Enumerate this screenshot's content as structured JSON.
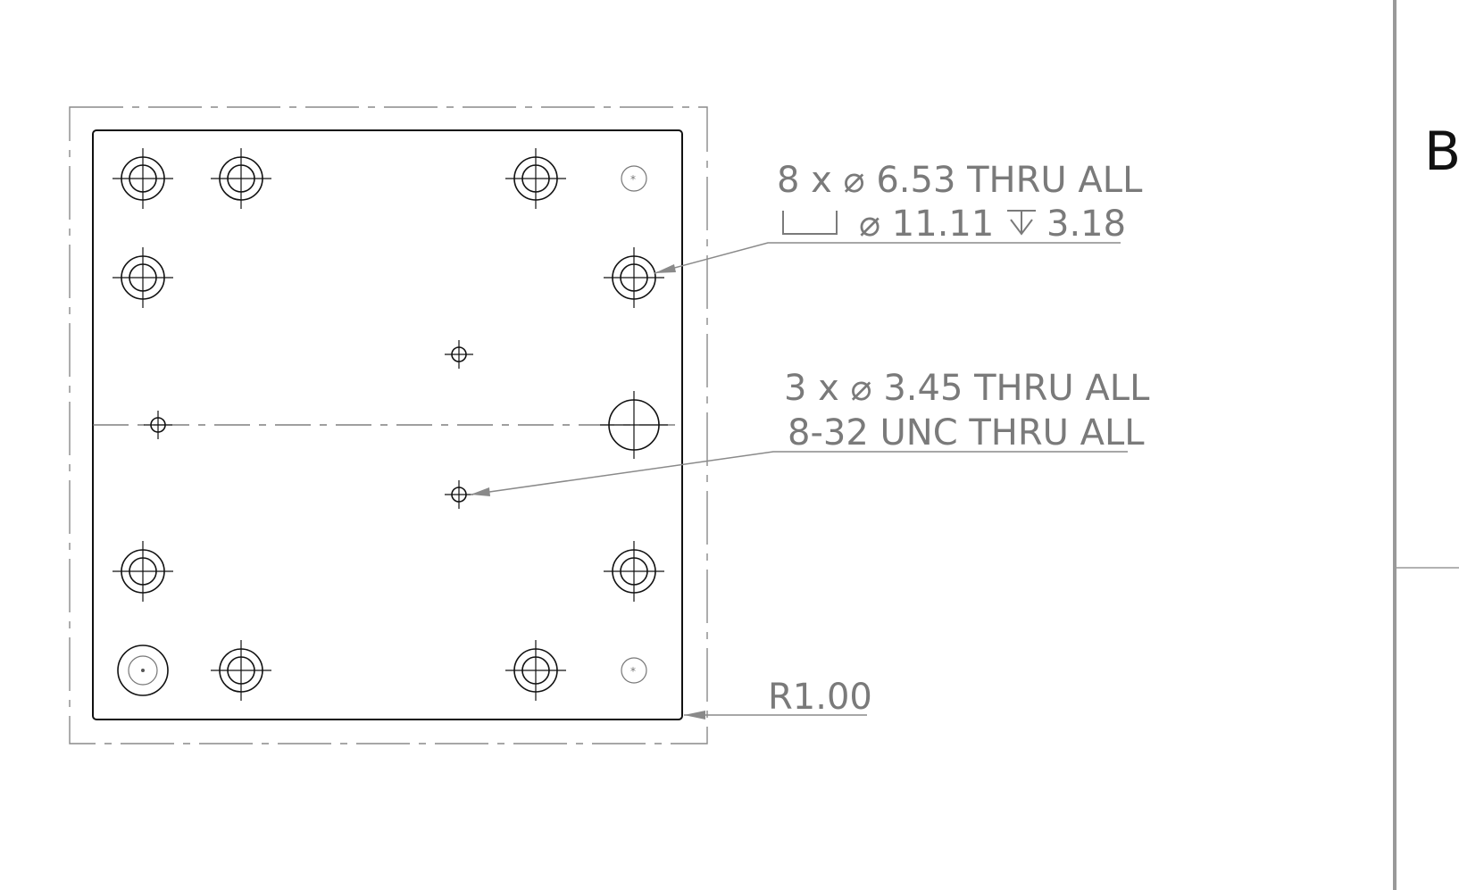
{
  "callouts": {
    "counterbore": {
      "line1": "8 x ⌀ 6.53 THRU ALL",
      "line2_diameter": "⌀ 11.11",
      "line2_depth": "3.18"
    },
    "tapped": {
      "line1": "3 x ⌀ 3.45 THRU ALL",
      "line2": "8-32 UNC  THRU ALL"
    },
    "fillet": {
      "label": "R1.00"
    }
  },
  "zone_marker": "B",
  "icons": {
    "counterbore_symbol": "counterbore-icon",
    "depth_symbol": "depth-icon"
  },
  "colors": {
    "annotation": "#7a7a7a",
    "geometry": "#111111"
  }
}
